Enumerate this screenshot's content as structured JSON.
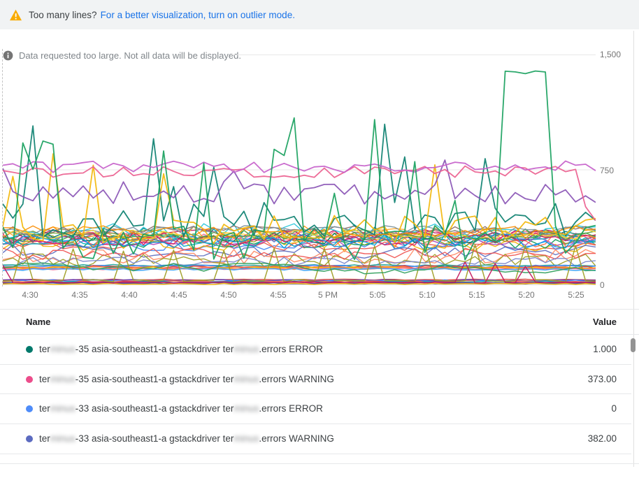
{
  "banner": {
    "text": "Too many lines?",
    "link": "For a better visualization, turn on outlier mode.",
    "warning_icon": "warning-triangle-icon",
    "warning_color": "#f9ab00",
    "link_color": "#1a73e8"
  },
  "chart": {
    "notice": "Data requested too large. Not all data will be displayed.",
    "info_icon": "info-circle-icon",
    "y_ticks": [
      "1,500",
      "750",
      "0"
    ]
  },
  "chart_data": {
    "type": "line",
    "title": "",
    "xlabel": "",
    "ylabel": "",
    "x_labels": [
      "4:30",
      "4:35",
      "4:40",
      "4:45",
      "4:50",
      "4:55",
      "5 PM",
      "5:05",
      "5:10",
      "5:15",
      "5:20",
      "5:25"
    ],
    "ylim": [
      0,
      1500
    ],
    "y_gridlines": [
      0,
      750,
      1500
    ],
    "legend_position": "table-below",
    "grid": true,
    "n_points": 60,
    "note": "~50 overlapping 1-minute series; exact per-point values unreadable in source, series are reproduced from band/amplitude parameters below",
    "series_groups": [
      {
        "group": "band",
        "stroke_width": 1.4,
        "bases": [
          255,
          262,
          270,
          276,
          283,
          290,
          297,
          304,
          310,
          316,
          322,
          328,
          334,
          340,
          346,
          352,
          358,
          300,
          285,
          330,
          315,
          345
        ],
        "noise_cycle": [
          30,
          42,
          55,
          36
        ],
        "colors": [
          "#e8554d",
          "#4285f4",
          "#f4b400",
          "#0f9d58",
          "#ab47bc",
          "#00acc1",
          "#ff7043",
          "#9e9d24",
          "#5c6bc0",
          "#f06292",
          "#00796b",
          "#c2185b",
          "#7cb342",
          "#ffa726",
          "#26c6da",
          "#8d6e63",
          "#78909c",
          "#d81b60",
          "#039be5",
          "#fdd835",
          "#43a047",
          "#fb8c00"
        ]
      },
      {
        "group": "midlow",
        "stroke_width": 1.4,
        "series": [
          {
            "color": "#5c6bc0",
            "base": 220,
            "noise": 45
          },
          {
            "color": "#ff8a65",
            "base": 190,
            "noise": 50
          },
          {
            "color": "#9e9d24",
            "base": 160,
            "noise": 45
          },
          {
            "color": "#ef5350",
            "base": 205,
            "noise": 40
          },
          {
            "color": "#7986cb",
            "base": 150,
            "noise": 35
          }
        ]
      },
      {
        "group": "flat",
        "stroke_width": 1.6,
        "bases": [
          128,
          122,
          118,
          114,
          110,
          106,
          102
        ],
        "noise_cycle": [
          6,
          8,
          10,
          7,
          9,
          6,
          8
        ],
        "colors": [
          "#26a69a",
          "#4285f4",
          "#db4437",
          "#ff7043",
          "#fbbc04",
          "#f06292",
          "#42a5f5"
        ]
      },
      {
        "group": "bottom",
        "stroke_width": 1.5,
        "bases": [
          36,
          32,
          28,
          24,
          20,
          16,
          12,
          8
        ],
        "noise_cycle": [
          3,
          5,
          7,
          4,
          6,
          3,
          5,
          4
        ],
        "colors": [
          "#db4437",
          "#5e35b1",
          "#4285f4",
          "#ff7043",
          "#00acc1",
          "#d81b60",
          "#3949ab",
          "#f4b400"
        ]
      },
      {
        "group": "features",
        "stroke_width": 1.5,
        "series": [
          {
            "color": "#9e9d24",
            "base": 28,
            "noise": 8,
            "spike_every": 5,
            "spike_phase": 2,
            "spike_value": 245
          },
          {
            "color": "#2f9e5b",
            "walker": true,
            "min": 38,
            "max": 148,
            "step": 55
          },
          {
            "color": "#c2185b",
            "base": 18,
            "noise": 5,
            "spike_chance": 0.05,
            "spike_min": 120,
            "spike_max": 170
          }
        ]
      },
      {
        "group": "hero",
        "stroke_width": 1.8,
        "series": [
          {
            "color": "#0c8070",
            "base": 420,
            "noise": 120,
            "spike_chance": 0.16,
            "spike_min": 620,
            "spike_max": 1060
          },
          {
            "color": "#f2b70a",
            "base": 360,
            "noise": 95,
            "spike_chance": 0.13,
            "spike_min": 580,
            "spike_max": 855
          },
          {
            "color": "#8a55b5",
            "base": 600,
            "noise": 75,
            "spike_chance": 0.08,
            "spike_min": 720,
            "spike_max": 820
          },
          {
            "color": "#ec5f8f",
            "base": 737,
            "noise": 38,
            "end_value": 420
          },
          {
            "color": "#c55fca",
            "base": 768,
            "noise": 42
          },
          {
            "color": "#19a15e",
            "base": 270,
            "noise": 130,
            "spike_chance": 0.26,
            "spike_min": 520,
            "spike_max": 1180,
            "plateau_from": 50,
            "plateau_to": 54,
            "plateau_value": 1385
          }
        ]
      }
    ]
  },
  "legend": {
    "headers": {
      "name": "Name",
      "value": "Value"
    },
    "rows": [
      {
        "color": "#00796b",
        "value": "1.000",
        "parts": [
          {
            "t": "ter"
          },
          {
            "t": "minus",
            "redacted": true
          },
          {
            "t": "-35 asia-southeast1-a gstackdriver ter"
          },
          {
            "t": "minus",
            "redacted": true
          },
          {
            "t": ".errors ERROR"
          }
        ]
      },
      {
        "color": "#ec4d8b",
        "value": "373.00",
        "parts": [
          {
            "t": "ter"
          },
          {
            "t": "minus",
            "redacted": true
          },
          {
            "t": "-35 asia-southeast1-a gstackdriver ter"
          },
          {
            "t": "minus",
            "redacted": true
          },
          {
            "t": ".errors WARNING"
          }
        ]
      },
      {
        "color": "#4e8cf9",
        "value": "0",
        "parts": [
          {
            "t": "ter"
          },
          {
            "t": "minus",
            "redacted": true
          },
          {
            "t": "-33 asia-southeast1-a gstackdriver ter"
          },
          {
            "t": "minus",
            "redacted": true
          },
          {
            "t": ".errors ERROR"
          }
        ]
      },
      {
        "color": "#5c6bc0",
        "value": "382.00",
        "parts": [
          {
            "t": "ter"
          },
          {
            "t": "minus",
            "redacted": true
          },
          {
            "t": "-33 asia-southeast1-a gstackdriver ter"
          },
          {
            "t": "minus",
            "redacted": true
          },
          {
            "t": ".errors WARNING"
          }
        ]
      }
    ]
  }
}
